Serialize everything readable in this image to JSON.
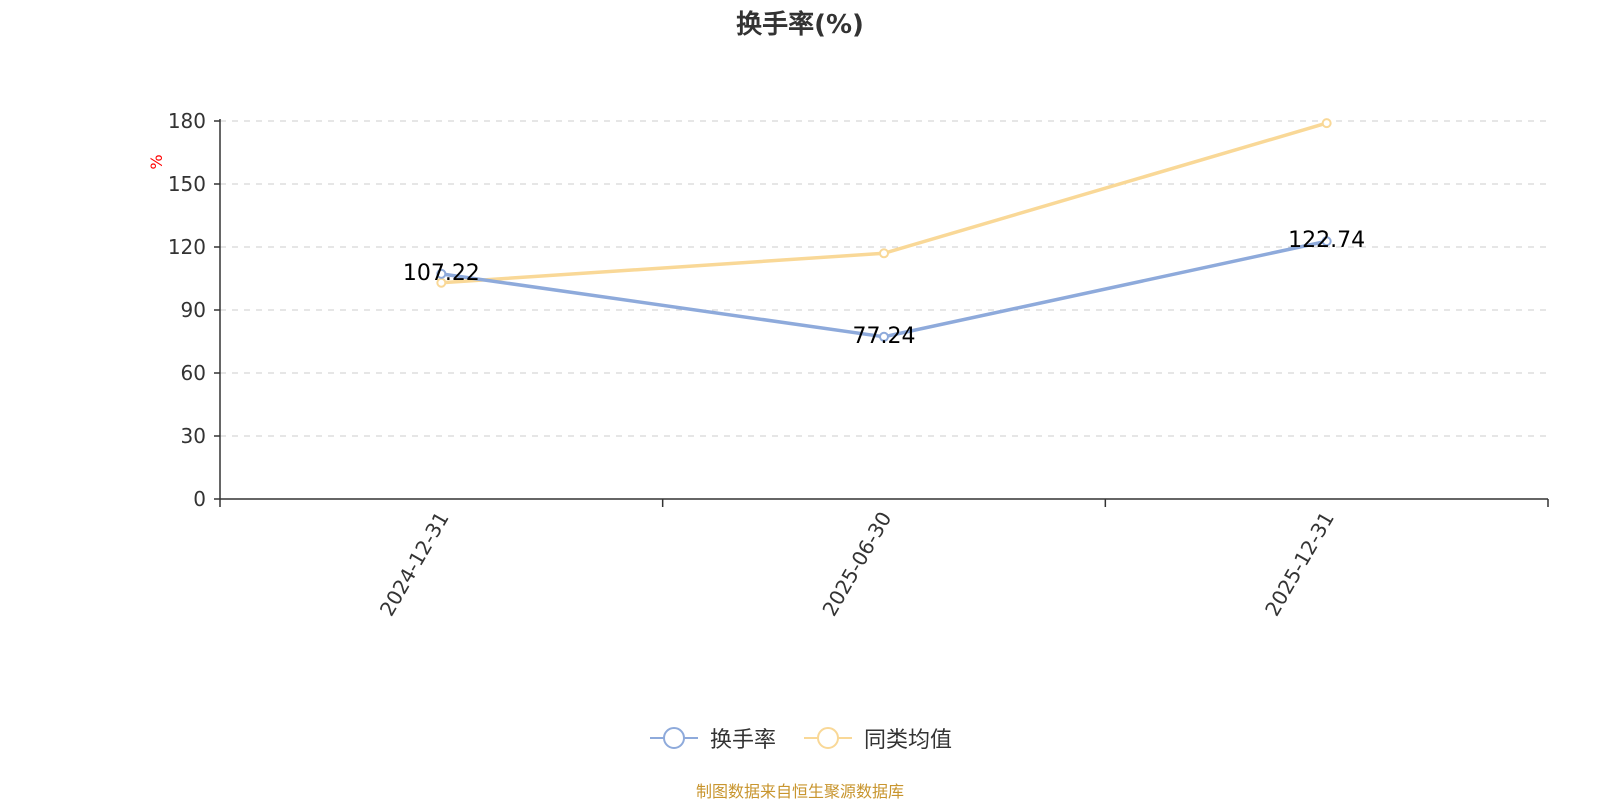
{
  "chart_data": {
    "type": "line",
    "title": "换手率(%)",
    "ylabel": "%",
    "ylim": [
      0,
      180
    ],
    "yticks": [
      0,
      30,
      60,
      90,
      120,
      150,
      180
    ],
    "categories": [
      "2024-12-31",
      "2025-06-30",
      "2025-12-31"
    ],
    "grid": true,
    "legend_position": "bottom",
    "series": [
      {
        "name": "换手率",
        "values": [
          107.22,
          77.24,
          122.74
        ],
        "color": "#8eaadb",
        "show_labels": true
      },
      {
        "name": "同类均值",
        "values": [
          103,
          117,
          179
        ],
        "color": "#f9d897",
        "show_labels": false
      }
    ]
  },
  "colors": {
    "ylabel": "#ff0000",
    "source": "#c8952e"
  },
  "footer": {
    "source": "制图数据来自恒生聚源数据库"
  }
}
